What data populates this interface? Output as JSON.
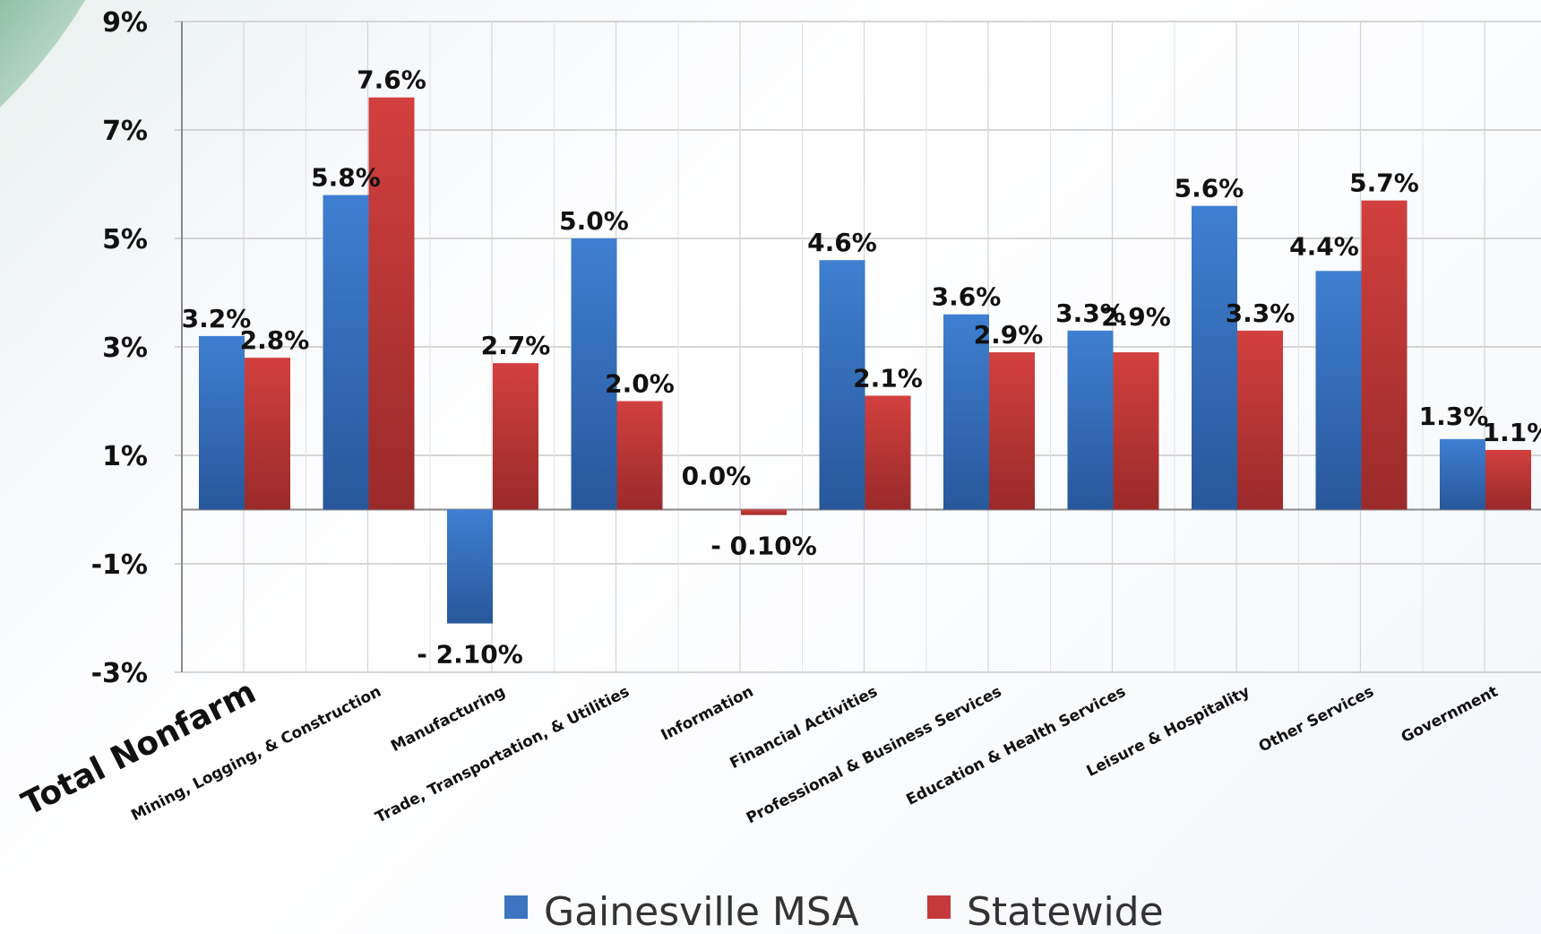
{
  "chart_data": {
    "type": "bar",
    "categories": [
      "Total Nonfarm",
      "Mining, Logging, & Construction",
      "Manufacturing",
      "Trade, Transportation, & Utilities",
      "Information",
      "Financial Activities",
      "Professional & Business Services",
      "Education & Health Services",
      "Leisure & Hospitality",
      "Other Services",
      "Government"
    ],
    "series": [
      {
        "name": "Gainesville MSA",
        "color": "#3a74c4",
        "values": [
          3.2,
          5.8,
          -2.1,
          5.0,
          0.0,
          4.6,
          3.6,
          3.3,
          5.6,
          4.4,
          1.3
        ],
        "labels": [
          "3.2%",
          "5.8%",
          "- 2.10%",
          "5.0%",
          "0.0%",
          "4.6%",
          "3.6%",
          "3.3%",
          "5.6%",
          "4.4%",
          "1.3%"
        ]
      },
      {
        "name": "Statewide",
        "color": "#c8383a",
        "values": [
          2.8,
          7.6,
          2.7,
          2.0,
          -0.1,
          2.1,
          2.9,
          2.9,
          3.3,
          5.7,
          1.1
        ],
        "labels": [
          "2.8%",
          "7.6%",
          "2.7%",
          "2.0%",
          "- 0.10%",
          "2.1%",
          "2.9%",
          "2.9%",
          "3.3%",
          "5.7%",
          "1.1%"
        ]
      }
    ],
    "y_ticks": [
      9,
      7,
      5,
      3,
      1,
      -1,
      -3
    ],
    "y_tick_labels": [
      "9%",
      "7%",
      "5%",
      "3%",
      "1%",
      "-1%",
      "-3%"
    ],
    "ylim": [
      -3,
      9
    ],
    "grid": true,
    "legend_position": "bottom"
  }
}
